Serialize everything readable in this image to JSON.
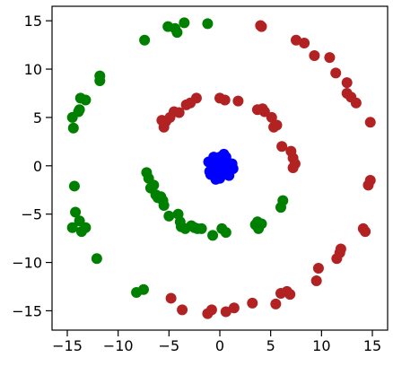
{
  "chart_data": {
    "type": "scatter",
    "title": "",
    "xlabel": "",
    "ylabel": "",
    "xlim": [
      -16.5,
      16.5
    ],
    "ylim": [
      -17,
      16.5
    ],
    "xticks": [
      -15,
      -10,
      -5,
      0,
      5,
      10,
      15
    ],
    "yticks": [
      -15,
      -10,
      -5,
      0,
      5,
      10,
      15
    ],
    "xtick_labels": [
      "−15",
      "−10",
      "−5",
      "0",
      "5",
      "10",
      "15"
    ],
    "ytick_labels": [
      "−15",
      "−10",
      "−5",
      "0",
      "5",
      "10",
      "15"
    ],
    "grid": false,
    "legend": "none",
    "series": [
      {
        "color": "#b22222",
        "points": [
          [
            4.0,
            14.5
          ],
          [
            4.1,
            14.4
          ],
          [
            7.5,
            13.0
          ],
          [
            8.3,
            12.7
          ],
          [
            9.3,
            11.4
          ],
          [
            10.8,
            11.2
          ],
          [
            11.4,
            9.6
          ],
          [
            12.5,
            8.6
          ],
          [
            12.5,
            7.5
          ],
          [
            12.9,
            7.1
          ],
          [
            13.4,
            6.5
          ],
          [
            14.8,
            4.5
          ],
          [
            1.8,
            6.7
          ],
          [
            0.0,
            7.0
          ],
          [
            0.5,
            6.8
          ],
          [
            -2.3,
            7.0
          ],
          [
            -2.9,
            6.5
          ],
          [
            -3.3,
            6.3
          ],
          [
            -4.0,
            5.5
          ],
          [
            -4.5,
            5.6
          ],
          [
            -4.9,
            5.0
          ],
          [
            -5.3,
            4.6
          ],
          [
            -5.7,
            4.7
          ],
          [
            -5.5,
            4.0
          ],
          [
            3.7,
            5.8
          ],
          [
            4.2,
            5.9
          ],
          [
            4.4,
            5.6
          ],
          [
            5.1,
            5.0
          ],
          [
            5.3,
            4.0
          ],
          [
            5.6,
            4.2
          ],
          [
            6.1,
            2.0
          ],
          [
            7.0,
            1.5
          ],
          [
            7.2,
            0.8
          ],
          [
            7.2,
            -0.2
          ],
          [
            7.4,
            0.2
          ],
          [
            14.8,
            -1.5
          ],
          [
            14.6,
            -2.0
          ],
          [
            14.1,
            -6.5
          ],
          [
            14.3,
            -6.8
          ],
          [
            11.9,
            -8.6
          ],
          [
            11.8,
            -9.0
          ],
          [
            11.5,
            -9.6
          ],
          [
            9.7,
            -10.6
          ],
          [
            9.5,
            -11.9
          ],
          [
            6.6,
            -13.0
          ],
          [
            6.9,
            -13.3
          ],
          [
            6.0,
            -13.2
          ],
          [
            5.5,
            -14.3
          ],
          [
            3.2,
            -14.2
          ],
          [
            1.4,
            -14.7
          ],
          [
            0.6,
            -15.1
          ],
          [
            -0.8,
            -14.9
          ],
          [
            -1.2,
            -15.3
          ],
          [
            -3.7,
            -14.9
          ],
          [
            -4.8,
            -13.7
          ]
        ]
      },
      {
        "color": "#008000",
        "points": [
          [
            -3.5,
            14.8
          ],
          [
            -4.4,
            14.2
          ],
          [
            -4.2,
            13.8
          ],
          [
            -5.1,
            14.4
          ],
          [
            -1.2,
            14.7
          ],
          [
            -7.4,
            13.0
          ],
          [
            -11.8,
            9.3
          ],
          [
            -11.8,
            8.8
          ],
          [
            -14.5,
            5.0
          ],
          [
            -14.4,
            3.9
          ],
          [
            -13.9,
            5.6
          ],
          [
            -13.7,
            7.0
          ],
          [
            -13.8,
            5.8
          ],
          [
            -13.2,
            6.8
          ],
          [
            -7.2,
            -0.7
          ],
          [
            -7.0,
            -1.3
          ],
          [
            -6.8,
            -2.3
          ],
          [
            -6.5,
            -2.0
          ],
          [
            -6.3,
            -3.0
          ],
          [
            -6.1,
            -3.3
          ],
          [
            -5.8,
            -3.2
          ],
          [
            -5.6,
            -3.6
          ],
          [
            -5.5,
            -4.1
          ],
          [
            -5.0,
            -5.2
          ],
          [
            -4.1,
            -5.0
          ],
          [
            -3.9,
            -5.8
          ],
          [
            -3.8,
            -6.3
          ],
          [
            -3.4,
            -6.5
          ],
          [
            -2.8,
            -6.2
          ],
          [
            -2.5,
            -6.4
          ],
          [
            -2.2,
            -6.5
          ],
          [
            -1.8,
            -6.5
          ],
          [
            -0.7,
            -7.2
          ],
          [
            0.2,
            -6.5
          ],
          [
            0.6,
            -6.9
          ],
          [
            3.5,
            -6.1
          ],
          [
            3.7,
            -5.8
          ],
          [
            3.8,
            -6.5
          ],
          [
            4.1,
            -6.0
          ],
          [
            6.0,
            -4.3
          ],
          [
            6.2,
            -3.6
          ],
          [
            -14.3,
            -2.1
          ],
          [
            -14.5,
            -6.4
          ],
          [
            -14.2,
            -4.8
          ],
          [
            -13.8,
            -5.7
          ],
          [
            -13.6,
            -6.8
          ],
          [
            -13.2,
            -6.4
          ],
          [
            -12.1,
            -9.6
          ],
          [
            -8.2,
            -13.1
          ],
          [
            -7.5,
            -12.8
          ]
        ]
      },
      {
        "color": "#0000ff",
        "points": [
          [
            0.0,
            0.0
          ],
          [
            0.3,
            0.5
          ],
          [
            -0.3,
            0.6
          ],
          [
            0.5,
            -0.2
          ],
          [
            -0.5,
            -0.4
          ],
          [
            0.8,
            0.3
          ],
          [
            -0.8,
            0.1
          ],
          [
            0.2,
            -0.8
          ],
          [
            -0.2,
            -1.0
          ],
          [
            0.6,
            0.9
          ],
          [
            -0.6,
            0.9
          ],
          [
            1.0,
            -0.5
          ],
          [
            -1.0,
            -0.6
          ],
          [
            0.4,
            1.2
          ],
          [
            -0.4,
            -1.4
          ],
          [
            1.2,
            0.2
          ],
          [
            -1.1,
            0.4
          ],
          [
            0.0,
            -1.3
          ],
          [
            0.9,
            -1.0
          ],
          [
            -0.9,
            -0.9
          ],
          [
            1.3,
            -0.3
          ],
          [
            -0.2,
            0.3
          ],
          [
            0.2,
            -0.3
          ],
          [
            0.0,
            0.9
          ]
        ]
      }
    ]
  }
}
